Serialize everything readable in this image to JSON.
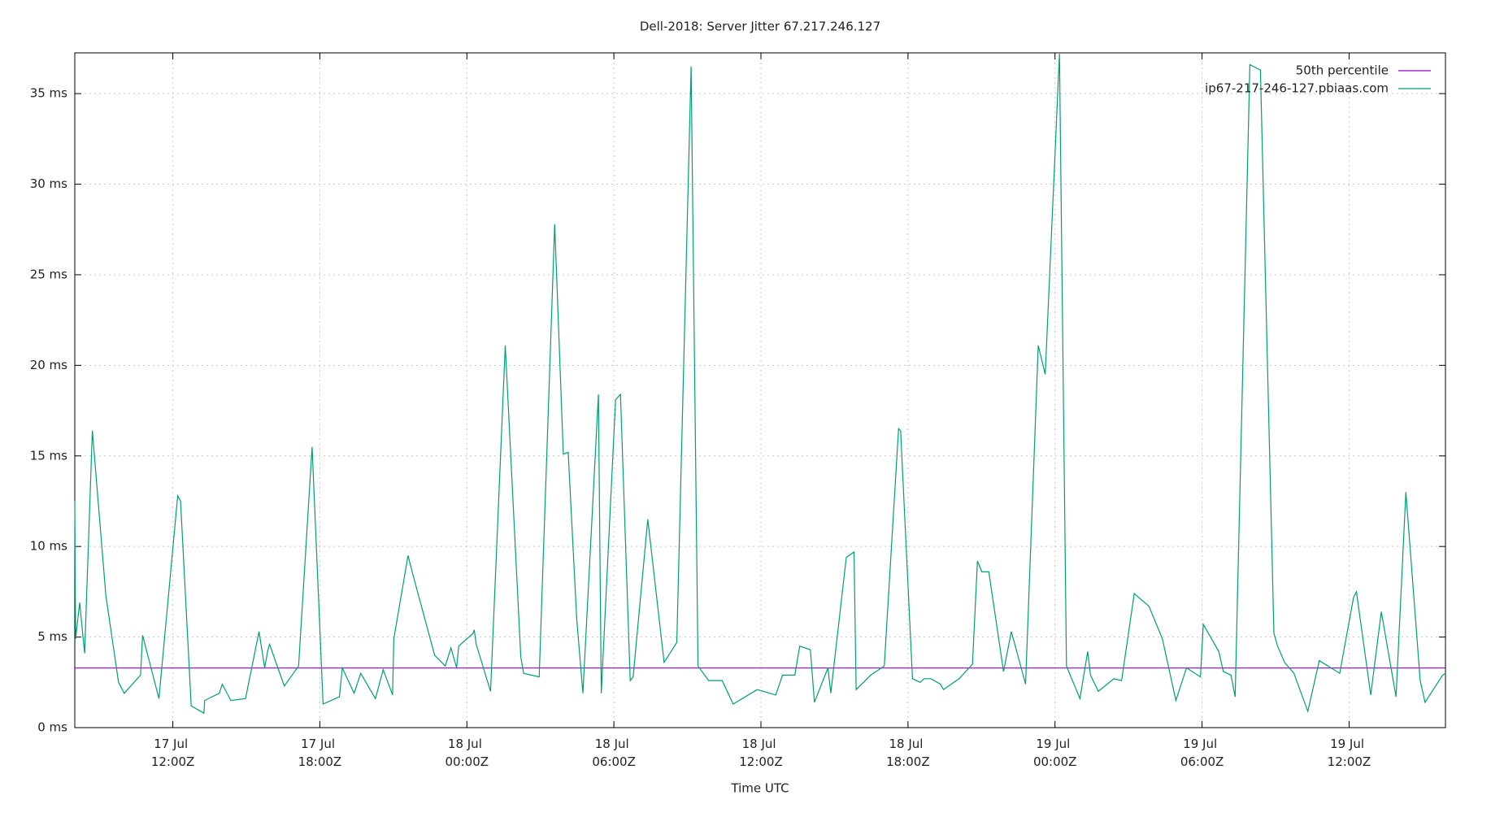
{
  "chart_data": {
    "type": "line",
    "title": "Dell-2018: Server Jitter 67.217.246.127",
    "x_label": "Time UTC",
    "xlim": [
      "17 Jul 08:00Z",
      "19 Jul 15:56Z"
    ],
    "xticks": [
      "17 Jul 12:00Z",
      "17 Jul 18:00Z",
      "18 Jul 00:00Z",
      "18 Jul 06:00Z",
      "18 Jul 12:00Z",
      "18 Jul 18:00Z",
      "19 Jul 00:00Z",
      "19 Jul 06:00Z",
      "19 Jul 12:00Z"
    ],
    "ylim": [
      0,
      37.25
    ],
    "yticks": [
      {
        "value": 0,
        "label": "0 ms"
      },
      {
        "value": 5,
        "label": "5 ms"
      },
      {
        "value": 10,
        "label": "10 ms"
      },
      {
        "value": 15,
        "label": "15 ms"
      },
      {
        "value": 20,
        "label": "20 ms"
      },
      {
        "value": 25,
        "label": "25 ms"
      },
      {
        "value": 30,
        "label": "30 ms"
      },
      {
        "value": 35,
        "label": "35 ms"
      }
    ],
    "grid": true,
    "legend": "top-right",
    "series": [
      {
        "name": "50th percentile",
        "color": "#9400d3",
        "x": [
          "17 Jul 08:00Z",
          "19 Jul 15:56Z"
        ],
        "values": [
          3.29,
          3.29
        ]
      },
      {
        "name": "ip67-217-246-127.pbiaas.com",
        "color": "#009e73",
        "x": [
          "17 Jul 08:00Z",
          "17 Jul 08:02Z",
          "17 Jul 08:12Z",
          "17 Jul 08:24Z",
          "17 Jul 08:43Z",
          "17 Jul 09:16Z",
          "17 Jul 09:47Z",
          "17 Jul 10:01Z",
          "17 Jul 10:41Z",
          "17 Jul 10:46Z",
          "17 Jul 11:26Z",
          "17 Jul 12:12Z",
          "17 Jul 12:19Z",
          "17 Jul 12:45Z",
          "17 Jul 13:16Z",
          "17 Jul 13:18Z",
          "17 Jul 13:54Z",
          "17 Jul 14:01Z",
          "17 Jul 14:22Z",
          "17 Jul 14:58Z",
          "17 Jul 15:31Z",
          "17 Jul 15:45Z",
          "17 Jul 15:52Z",
          "17 Jul 15:57Z",
          "17 Jul 16:33Z",
          "17 Jul 17:08Z",
          "17 Jul 17:41Z",
          "17 Jul 18:08Z",
          "17 Jul 18:48Z",
          "17 Jul 18:55Z",
          "17 Jul 19:24Z",
          "17 Jul 19:40Z",
          "17 Jul 20:16Z",
          "17 Jul 20:35Z",
          "17 Jul 20:58Z",
          "17 Jul 21:01Z",
          "17 Jul 21:36Z",
          "17 Jul 21:46Z",
          "17 Jul 22:41Z",
          "17 Jul 23:07Z",
          "17 Jul 23:21Z",
          "17 Jul 23:35Z",
          "17 Jul 23:40Z",
          "18 Jul 00:15Z",
          "18 Jul 00:18Z",
          "18 Jul 00:23Z",
          "18 Jul 00:58Z",
          "18 Jul 01:34Z",
          "18 Jul 02:12Z",
          "18 Jul 02:19Z",
          "18 Jul 02:57Z",
          "18 Jul 03:35Z",
          "18 Jul 03:56Z",
          "18 Jul 04:08Z",
          "18 Jul 04:29Z",
          "18 Jul 04:44Z",
          "18 Jul 05:22Z",
          "18 Jul 05:29Z",
          "18 Jul 06:04Z",
          "18 Jul 06:16Z",
          "18 Jul 06:40Z",
          "18 Jul 06:47Z",
          "18 Jul 07:23Z",
          "18 Jul 08:03Z",
          "18 Jul 08:34Z",
          "18 Jul 09:09Z",
          "18 Jul 09:26Z",
          "18 Jul 09:52Z",
          "18 Jul 10:25Z",
          "18 Jul 10:52Z",
          "18 Jul 11:51Z",
          "18 Jul 12:36Z",
          "18 Jul 12:53Z",
          "18 Jul 13:23Z",
          "18 Jul 13:35Z",
          "18 Jul 14:01Z",
          "18 Jul 14:11Z",
          "18 Jul 14:44Z",
          "18 Jul 14:51Z",
          "18 Jul 15:29Z",
          "18 Jul 15:48Z",
          "18 Jul 15:53Z",
          "18 Jul 16:29Z",
          "18 Jul 17:02Z",
          "18 Jul 17:37Z",
          "18 Jul 17:42Z",
          "18 Jul 18:11Z",
          "18 Jul 18:30Z",
          "18 Jul 18:39Z",
          "18 Jul 18:56Z",
          "18 Jul 19:19Z",
          "18 Jul 19:27Z",
          "18 Jul 20:05Z",
          "18 Jul 20:38Z",
          "18 Jul 20:50Z",
          "18 Jul 21:01Z",
          "18 Jul 21:18Z",
          "18 Jul 21:54Z",
          "18 Jul 22:13Z",
          "18 Jul 22:48Z",
          "18 Jul 23:19Z",
          "18 Jul 23:36Z",
          "19 Jul 00:11Z",
          "19 Jul 00:28Z",
          "19 Jul 01:01Z",
          "19 Jul 01:20Z",
          "19 Jul 01:27Z",
          "19 Jul 01:46Z",
          "19 Jul 02:24Z",
          "19 Jul 02:43Z",
          "19 Jul 03:14Z",
          "19 Jul 03:50Z",
          "19 Jul 04:23Z",
          "19 Jul 04:56Z",
          "19 Jul 05:22Z",
          "19 Jul 05:56Z",
          "19 Jul 06:03Z",
          "19 Jul 06:41Z",
          "19 Jul 06:52Z",
          "19 Jul 07:11Z",
          "19 Jul 07:21Z",
          "19 Jul 07:57Z",
          "19 Jul 08:23Z",
          "19 Jul 08:56Z",
          "19 Jul 09:05Z",
          "19 Jul 09:22Z",
          "19 Jul 09:45Z",
          "19 Jul 10:19Z",
          "19 Jul 10:47Z",
          "19 Jul 11:37Z",
          "19 Jul 12:11Z",
          "19 Jul 12:18Z",
          "19 Jul 12:53Z",
          "19 Jul 13:19Z",
          "19 Jul 13:55Z",
          "19 Jul 14:19Z",
          "19 Jul 14:54Z",
          "19 Jul 15:06Z",
          "19 Jul 15:49Z",
          "19 Jul 15:56Z"
        ],
        "values": [
          12.5,
          4.9,
          6.9,
          4.1,
          16.4,
          7.3,
          2.5,
          1.9,
          2.9,
          5.1,
          1.6,
          12.8,
          12.5,
          1.2,
          0.8,
          1.5,
          1.9,
          2.4,
          1.5,
          1.6,
          5.3,
          3.3,
          4.2,
          4.6,
          2.3,
          3.4,
          15.5,
          1.3,
          1.7,
          3.3,
          1.9,
          3.0,
          1.6,
          3.2,
          1.8,
          4.9,
          9.5,
          8.6,
          4.0,
          3.4,
          4.4,
          3.3,
          4.5,
          5.2,
          5.4,
          4.6,
          2.0,
          21.1,
          3.9,
          3.0,
          2.8,
          27.8,
          15.1,
          15.2,
          6.0,
          1.9,
          18.4,
          1.9,
          18.1,
          18.4,
          2.6,
          2.8,
          11.5,
          3.6,
          4.7,
          36.5,
          3.4,
          2.6,
          2.6,
          1.3,
          2.1,
          1.8,
          2.9,
          2.9,
          4.5,
          4.3,
          1.4,
          3.3,
          1.9,
          9.4,
          9.7,
          2.1,
          2.9,
          3.4,
          16.5,
          16.4,
          2.7,
          2.5,
          2.7,
          2.7,
          2.4,
          2.1,
          2.7,
          3.5,
          9.2,
          8.6,
          8.6,
          3.1,
          5.3,
          2.4,
          21.1,
          19.5,
          37.2,
          3.4,
          1.6,
          4.2,
          2.9,
          2.0,
          2.7,
          2.6,
          7.4,
          6.7,
          4.9,
          1.5,
          3.3,
          2.8,
          5.7,
          4.2,
          3.1,
          2.9,
          1.7,
          36.6,
          36.3,
          5.2,
          4.5,
          3.6,
          3.0,
          0.9,
          3.7,
          3.0,
          7.2,
          7.5,
          1.8,
          6.4,
          1.7,
          13.0,
          2.6,
          1.4,
          2.9,
          3.0
        ]
      }
    ]
  }
}
